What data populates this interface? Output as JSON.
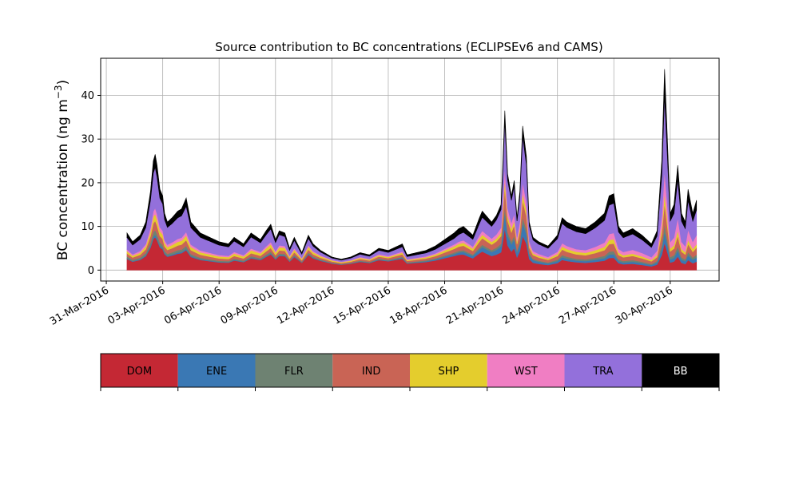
{
  "chart_data": {
    "type": "area",
    "stacked": true,
    "title": "Source contribution to BC concentrations (ECLIPSEv6 and CAMS)",
    "ylabel": "BC concentration (ng m",
    "ylabel_exp": "−3",
    "ylabel_close": ")",
    "xlabel": "",
    "grid": true,
    "ylim": [
      -2.5,
      48.5
    ],
    "xlim": [
      -0.3,
      32.6
    ],
    "yticks": [
      0,
      10,
      20,
      30,
      40
    ],
    "xtick_labels": [
      "31-Mar-2016",
      "03-Apr-2016",
      "06-Apr-2016",
      "09-Apr-2016",
      "12-Apr-2016",
      "15-Apr-2016",
      "18-Apr-2016",
      "21-Apr-2016",
      "24-Apr-2016",
      "27-Apr-2016",
      "30-Apr-2016"
    ],
    "xtick_days": [
      0,
      3,
      6,
      9,
      12,
      15,
      18,
      21,
      24,
      27,
      30
    ],
    "x_unit": "days since 31-Mar-2016",
    "total_profile": [
      [
        1.1,
        8.5
      ],
      [
        1.4,
        6.5
      ],
      [
        1.8,
        8.0
      ],
      [
        2.1,
        11.0
      ],
      [
        2.35,
        18.0
      ],
      [
        2.5,
        25.0
      ],
      [
        2.6,
        26.5
      ],
      [
        2.7,
        24.0
      ],
      [
        2.85,
        18.5
      ],
      [
        3.0,
        17.0
      ],
      [
        3.1,
        13.0
      ],
      [
        3.25,
        11.0
      ],
      [
        3.5,
        12.0
      ],
      [
        3.8,
        13.5
      ],
      [
        4.0,
        14.0
      ],
      [
        4.25,
        16.5
      ],
      [
        4.5,
        11.0
      ],
      [
        5.0,
        8.5
      ],
      [
        5.5,
        7.5
      ],
      [
        6.0,
        6.5
      ],
      [
        6.5,
        6.0
      ],
      [
        6.8,
        7.5
      ],
      [
        7.3,
        6.0
      ],
      [
        7.7,
        8.5
      ],
      [
        8.2,
        7.0
      ],
      [
        8.5,
        9.0
      ],
      [
        8.75,
        10.5
      ],
      [
        9.0,
        7.0
      ],
      [
        9.2,
        9.0
      ],
      [
        9.5,
        8.5
      ],
      [
        9.75,
        5.0
      ],
      [
        10.0,
        7.5
      ],
      [
        10.4,
        4.0
      ],
      [
        10.75,
        8.0
      ],
      [
        11.0,
        6.0
      ],
      [
        11.4,
        4.5
      ],
      [
        12.0,
        3.0
      ],
      [
        12.5,
        2.5
      ],
      [
        13.0,
        3.0
      ],
      [
        13.5,
        4.0
      ],
      [
        14.0,
        3.5
      ],
      [
        14.5,
        5.0
      ],
      [
        15.0,
        4.5
      ],
      [
        15.5,
        5.5
      ],
      [
        15.75,
        6.0
      ],
      [
        16.0,
        3.5
      ],
      [
        16.5,
        4.0
      ],
      [
        17.0,
        4.5
      ],
      [
        17.5,
        5.5
      ],
      [
        18.0,
        7.0
      ],
      [
        18.5,
        8.5
      ],
      [
        18.75,
        9.5
      ],
      [
        19.0,
        10.0
      ],
      [
        19.5,
        8.0
      ],
      [
        19.85,
        12.0
      ],
      [
        20.0,
        13.5
      ],
      [
        20.5,
        11.0
      ],
      [
        20.75,
        12.5
      ],
      [
        21.0,
        15.0
      ],
      [
        21.1,
        25.0
      ],
      [
        21.2,
        36.5
      ],
      [
        21.35,
        22.0
      ],
      [
        21.55,
        17.0
      ],
      [
        21.7,
        20.5
      ],
      [
        21.85,
        12.0
      ],
      [
        22.0,
        18.0
      ],
      [
        22.15,
        33.0
      ],
      [
        22.35,
        26.0
      ],
      [
        22.5,
        11.0
      ],
      [
        22.7,
        7.5
      ],
      [
        23.0,
        6.5
      ],
      [
        23.5,
        5.5
      ],
      [
        24.0,
        8.0
      ],
      [
        24.25,
        12.0
      ],
      [
        24.5,
        11.0
      ],
      [
        25.0,
        10.0
      ],
      [
        25.5,
        9.5
      ],
      [
        26.0,
        11.0
      ],
      [
        26.5,
        13.0
      ],
      [
        26.75,
        17.0
      ],
      [
        27.0,
        17.5
      ],
      [
        27.25,
        10.0
      ],
      [
        27.5,
        8.5
      ],
      [
        28.0,
        9.5
      ],
      [
        28.5,
        8.0
      ],
      [
        29.0,
        6.0
      ],
      [
        29.3,
        9.0
      ],
      [
        29.55,
        25.0
      ],
      [
        29.7,
        46.0
      ],
      [
        29.85,
        30.0
      ],
      [
        30.0,
        13.0
      ],
      [
        30.2,
        15.0
      ],
      [
        30.4,
        24.0
      ],
      [
        30.6,
        13.0
      ],
      [
        30.8,
        11.0
      ],
      [
        30.95,
        18.5
      ],
      [
        31.2,
        13.0
      ],
      [
        31.4,
        16.0
      ]
    ],
    "series": [
      {
        "name": "DOM",
        "color": "#c42834",
        "fractions": [
          0.3,
          0.28,
          0.27,
          0.35,
          0.5,
          0.45,
          0.38,
          0.25,
          0.18,
          0.12
        ]
      },
      {
        "name": "ENE",
        "color": "#3a78b4",
        "fractions": [
          0.02,
          0.02,
          0.02,
          0.02,
          0.03,
          0.03,
          0.05,
          0.1,
          0.04,
          0.06
        ]
      },
      {
        "name": "FLR",
        "color": "#6e8272",
        "fractions": [
          0.05,
          0.04,
          0.04,
          0.04,
          0.04,
          0.04,
          0.04,
          0.04,
          0.04,
          0.04
        ]
      },
      {
        "name": "IND",
        "color": "#c96455",
        "fractions": [
          0.08,
          0.08,
          0.08,
          0.08,
          0.09,
          0.09,
          0.1,
          0.12,
          0.1,
          0.1
        ]
      },
      {
        "name": "SHP",
        "color": "#e4cd2d",
        "fractions": [
          0.06,
          0.06,
          0.07,
          0.08,
          0.08,
          0.06,
          0.07,
          0.05,
          0.06,
          0.05
        ]
      },
      {
        "name": "WST",
        "color": "#f07ec3",
        "fractions": [
          0.05,
          0.05,
          0.05,
          0.05,
          0.04,
          0.05,
          0.05,
          0.08,
          0.06,
          0.13
        ]
      },
      {
        "name": "TRA",
        "color": "#9370db",
        "fractions": [
          0.32,
          0.36,
          0.35,
          0.28,
          0.14,
          0.18,
          0.16,
          0.3,
          0.4,
          0.36
        ]
      },
      {
        "name": "BB",
        "color": "#000000",
        "fractions": [
          0.12,
          0.11,
          0.12,
          0.1,
          0.08,
          0.1,
          0.15,
          0.06,
          0.12,
          0.14
        ]
      }
    ],
    "fraction_knots": [
      1.1,
      3.0,
      6.0,
      9.0,
      12.0,
      15.0,
      18.5,
      21.5,
      25.0,
      31.4
    ]
  },
  "legend": {
    "items": [
      {
        "label": "DOM",
        "color": "#c42834",
        "text_color": "#000000"
      },
      {
        "label": "ENE",
        "color": "#3a78b4",
        "text_color": "#000000"
      },
      {
        "label": "FLR",
        "color": "#6e8272",
        "text_color": "#000000"
      },
      {
        "label": "IND",
        "color": "#c96455",
        "text_color": "#000000"
      },
      {
        "label": "SHP",
        "color": "#e4cd2d",
        "text_color": "#000000"
      },
      {
        "label": "WST",
        "color": "#f07ec3",
        "text_color": "#000000"
      },
      {
        "label": "TRA",
        "color": "#9370db",
        "text_color": "#000000"
      },
      {
        "label": "BB",
        "color": "#000000",
        "text_color": "#ffffff"
      }
    ]
  }
}
